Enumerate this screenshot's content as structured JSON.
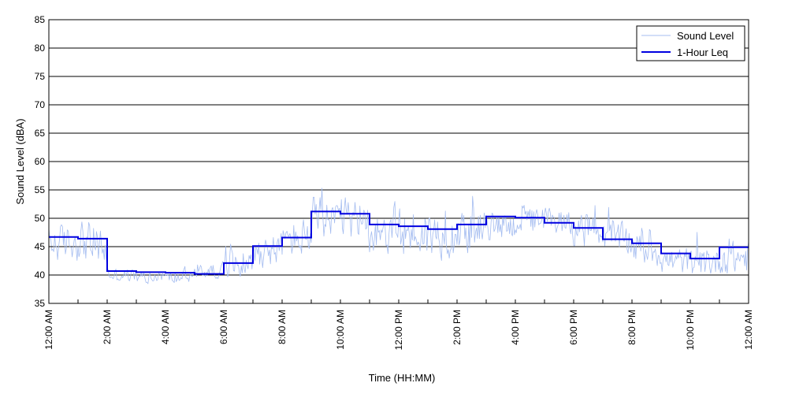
{
  "chart_data": {
    "type": "line",
    "xlabel": "Time (HH:MM)",
    "ylabel": "Sound Level (dBA)",
    "ylim": [
      35,
      85
    ],
    "xlim": [
      0,
      24
    ],
    "y_ticks": [
      "35",
      "40",
      "45",
      "50",
      "55",
      "60",
      "65",
      "70",
      "75",
      "80",
      "85"
    ],
    "x_ticks": [
      "12:00 AM",
      "2:00 AM",
      "4:00 AM",
      "6:00 AM",
      "8:00 AM",
      "10:00 AM",
      "12:00 PM",
      "2:00 PM",
      "4:00 PM",
      "6:00 PM",
      "8:00 PM",
      "10:00 PM",
      "12:00 AM"
    ],
    "grid": "horizontal",
    "legend_position": "top-right",
    "series": [
      {
        "name": "Sound Level",
        "kind": "raw",
        "color": "#a4bcf0",
        "note": "Dense minute-level measurements; hourly center levels and fluctuation ranges read from the plot",
        "hourly_center": [
          45.5,
          46.5,
          40.0,
          39.5,
          39.5,
          40.5,
          41.5,
          44.0,
          46.0,
          49.0,
          50.0,
          48.0,
          47.5,
          47.0,
          47.5,
          48.5,
          49.5,
          49.5,
          48.0,
          46.5,
          45.0,
          42.5,
          42.0,
          43.0
        ],
        "hourly_range": [
          4.0,
          4.5,
          1.5,
          1.5,
          1.5,
          1.5,
          2.5,
          3.5,
          4.0,
          6.0,
          4.5,
          5.5,
          5.5,
          5.0,
          4.5,
          3.0,
          3.0,
          3.0,
          3.5,
          3.5,
          3.5,
          3.0,
          3.0,
          3.5
        ]
      },
      {
        "name": "1-Hour Leq",
        "kind": "step",
        "color": "#0000e0",
        "hours": [
          0,
          1,
          2,
          3,
          4,
          5,
          6,
          7,
          8,
          9,
          10,
          11,
          12,
          13,
          14,
          15,
          16,
          17,
          18,
          19,
          20,
          21,
          22,
          23
        ],
        "values": [
          46.7,
          46.4,
          40.7,
          40.5,
          40.4,
          40.2,
          42.1,
          45.1,
          46.6,
          51.2,
          50.8,
          48.9,
          48.6,
          48.1,
          48.9,
          50.3,
          50.1,
          49.2,
          48.3,
          46.3,
          45.6,
          43.8,
          42.9,
          44.9
        ]
      }
    ]
  }
}
